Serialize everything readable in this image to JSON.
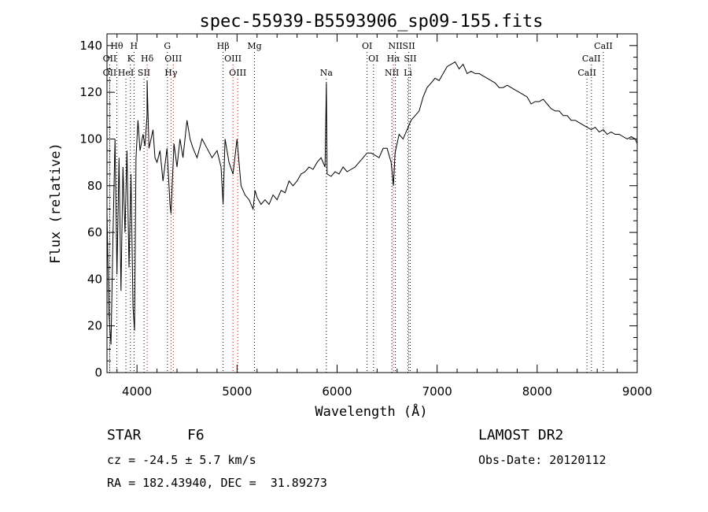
{
  "chart_data": {
    "type": "line",
    "title": "spec-55939-B5593906_sp09-155.fits",
    "xlabel": "Wavelength (Å)",
    "ylabel": "Flux (relative)",
    "xlim": [
      3700,
      9000
    ],
    "ylim": [
      0,
      145
    ],
    "x_ticks": [
      4000,
      5000,
      6000,
      7000,
      8000,
      9000
    ],
    "y_ticks": [
      0,
      20,
      40,
      60,
      80,
      100,
      120,
      140
    ],
    "grid": false,
    "series": [
      {
        "color": "#000000",
        "x": [
          3700,
          3720,
          3740,
          3760,
          3780,
          3800,
          3820,
          3840,
          3860,
          3880,
          3900,
          3920,
          3940,
          3960,
          3975,
          3990,
          4010,
          4030,
          4060,
          4080,
          4100,
          4101,
          4120,
          4140,
          4160,
          4180,
          4200,
          4230,
          4260,
          4300,
          4330,
          4340,
          4350,
          4370,
          4400,
          4430,
          4460,
          4500,
          4530,
          4560,
          4600,
          4650,
          4700,
          4750,
          4800,
          4840,
          4861,
          4880,
          4920,
          4960,
          5000,
          5040,
          5080,
          5120,
          5160,
          5180,
          5200,
          5240,
          5280,
          5320,
          5360,
          5400,
          5440,
          5480,
          5520,
          5560,
          5600,
          5640,
          5680,
          5720,
          5760,
          5800,
          5840,
          5880,
          5893,
          5900,
          5940,
          5980,
          6020,
          6060,
          6100,
          6140,
          6180,
          6220,
          6260,
          6300,
          6340,
          6380,
          6420,
          6460,
          6500,
          6540,
          6563,
          6580,
          6620,
          6660,
          6700,
          6740,
          6780,
          6820,
          6860,
          6900,
          6940,
          6980,
          7020,
          7060,
          7100,
          7140,
          7180,
          7220,
          7260,
          7300,
          7340,
          7380,
          7420,
          7460,
          7500,
          7540,
          7580,
          7620,
          7660,
          7700,
          7740,
          7780,
          7820,
          7860,
          7900,
          7940,
          7980,
          8020,
          8060,
          8100,
          8140,
          8180,
          8220,
          8260,
          8300,
          8340,
          8380,
          8420,
          8460,
          8500,
          8540,
          8580,
          8620,
          8660,
          8700,
          8740,
          8780,
          8820,
          8860,
          8900,
          8940,
          8980,
          9000
        ],
        "y": [
          68,
          25,
          12,
          58,
          100,
          42,
          92,
          35,
          88,
          60,
          95,
          45,
          85,
          28,
          18,
          92,
          108,
          95,
          102,
          97,
          110,
          125,
          96,
          100,
          104,
          92,
          90,
          95,
          82,
          96,
          72,
          68,
          79,
          98,
          88,
          100,
          92,
          108,
          100,
          96,
          92,
          100,
          96,
          92,
          95,
          88,
          72,
          100,
          90,
          85,
          100,
          80,
          76,
          74,
          70,
          78,
          75,
          72,
          74,
          72,
          76,
          74,
          78,
          77,
          82,
          80,
          82,
          85,
          86,
          88,
          87,
          90,
          92,
          88,
          124,
          85,
          84,
          86,
          85,
          88,
          86,
          87,
          88,
          90,
          92,
          94,
          94,
          93,
          92,
          96,
          96,
          90,
          80,
          94,
          102,
          100,
          104,
          108,
          110,
          112,
          118,
          122,
          124,
          126,
          125,
          128,
          131,
          132,
          133,
          130,
          132,
          128,
          129,
          128,
          128,
          127,
          126,
          125,
          124,
          122,
          122,
          123,
          122,
          121,
          120,
          119,
          118,
          115,
          116,
          116,
          117,
          115,
          113,
          112,
          112,
          110,
          110,
          108,
          108,
          107,
          106,
          105,
          104,
          105,
          103,
          104,
          102,
          103,
          102,
          102,
          101,
          100,
          101,
          100,
          98
        ]
      }
    ],
    "spectral_lines": [
      {
        "label": "Hθ",
        "x": 3798,
        "row": 0,
        "color": "#000000"
      },
      {
        "label": "H",
        "x": 3970,
        "row": 0,
        "color": "#000000"
      },
      {
        "label": "G",
        "x": 4304,
        "row": 0,
        "color": "#000000"
      },
      {
        "label": "Hβ",
        "x": 4861,
        "row": 0,
        "color": "#000000"
      },
      {
        "label": "Mg",
        "x": 5175,
        "row": 0,
        "color": "#000000"
      },
      {
        "label": "OI",
        "x": 6300,
        "row": 0,
        "color": "#000000"
      },
      {
        "label": "NII",
        "x": 6583,
        "row": 0,
        "color": "#000000"
      },
      {
        "label": "SII",
        "x": 6717,
        "row": 0,
        "color": "#000000"
      },
      {
        "label": "CaII",
        "x": 8662,
        "row": 0,
        "color": "#000000"
      },
      {
        "label": "OII",
        "x": 3727,
        "row": 1,
        "color": "#000000"
      },
      {
        "label": "K",
        "x": 3934,
        "row": 1,
        "color": "#000000"
      },
      {
        "label": "Hδ",
        "x": 4102,
        "row": 1,
        "color": "#cc0000"
      },
      {
        "label": "OIII",
        "x": 4363,
        "row": 1,
        "color": "#cc0000"
      },
      {
        "label": "OIII",
        "x": 4959,
        "row": 1,
        "color": "#cc0000"
      },
      {
        "label": "OI",
        "x": 6364,
        "row": 1,
        "color": "#000000"
      },
      {
        "label": "Hα",
        "x": 6563,
        "row": 1,
        "color": "#cc0000"
      },
      {
        "label": "SII",
        "x": 6731,
        "row": 1,
        "color": "#000000"
      },
      {
        "label": "CaII",
        "x": 8542,
        "row": 1,
        "color": "#000000"
      },
      {
        "label": "OII",
        "x": 3727,
        "row": 2,
        "color": "#000000"
      },
      {
        "label": "HeI",
        "x": 3889,
        "row": 2,
        "color": "#000000"
      },
      {
        "label": "SII",
        "x": 4070,
        "row": 2,
        "color": "#000000"
      },
      {
        "label": "Hγ",
        "x": 4340,
        "row": 2,
        "color": "#cc0000"
      },
      {
        "label": "OIII",
        "x": 5007,
        "row": 2,
        "color": "#cc0000"
      },
      {
        "label": "Na",
        "x": 5893,
        "row": 2,
        "color": "#000000"
      },
      {
        "label": "NII",
        "x": 6548,
        "row": 2,
        "color": "#000000"
      },
      {
        "label": "Li",
        "x": 6708,
        "row": 2,
        "color": "#000000"
      },
      {
        "label": "CaII",
        "x": 8498,
        "row": 2,
        "color": "#000000"
      }
    ]
  },
  "info": {
    "class": "STAR",
    "subclass": "F6",
    "survey": "LAMOST DR2",
    "redshift": "cz = -24.5 ± 5.7 km/s",
    "obs_date": "Obs-Date: 20120112",
    "coords": "RA = 182.43940, DEC =  31.89273"
  }
}
